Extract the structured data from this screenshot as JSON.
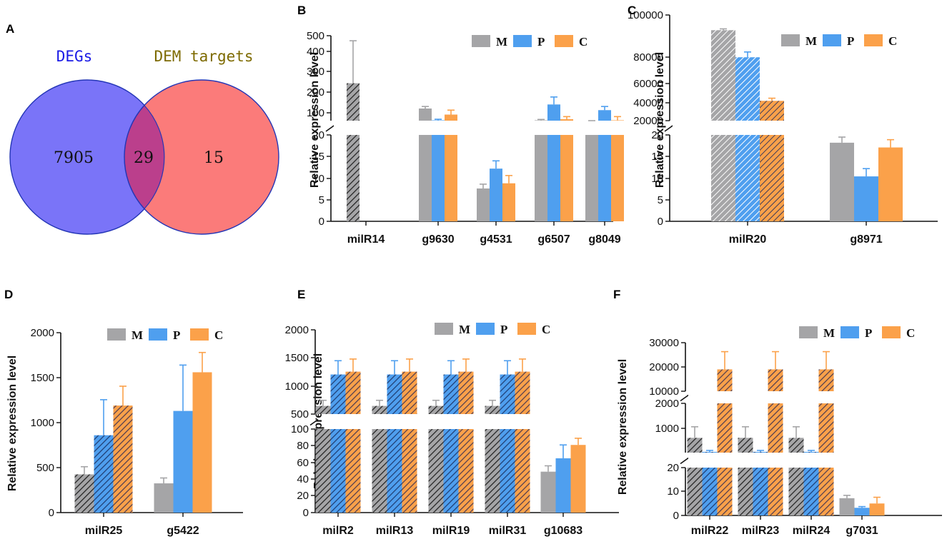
{
  "colors": {
    "M": "#a5a5a7",
    "P": "#4f9fef",
    "C": "#fba14a",
    "bar_stroke": "#4a4a4a",
    "venn_left": "#7a74f8",
    "venn_right": "#fb7b7a",
    "venn_overlap": "#bb3f8c",
    "venn_border": "#2436b6",
    "venn_left_label": "#1b1be6",
    "venn_right_label": "#7d6a00"
  },
  "ylabel": "Relative expression level",
  "legend": [
    "M",
    "P",
    "C"
  ],
  "panels": {
    "A": {
      "letter": "A",
      "left_label": "DEGs",
      "right_label": "DEM targets",
      "left_only": "7905",
      "overlap": "29",
      "right_only": "15"
    },
    "B": {
      "letter": "B"
    },
    "C": {
      "letter": "C"
    },
    "D": {
      "letter": "D"
    },
    "E": {
      "letter": "E"
    },
    "F": {
      "letter": "F"
    }
  },
  "chart_data": [
    {
      "panel": "B",
      "type": "bar",
      "title": "",
      "ylabel": "Relative expression level",
      "broken_axis": {
        "lower": [
          0,
          20
        ],
        "upper": [
          80,
          500
        ]
      },
      "lower_ticks": [
        "0",
        "5",
        "10",
        "15",
        "20"
      ],
      "upper_ticks": [
        "100",
        "200",
        "300",
        "400",
        "500"
      ],
      "series_names": [
        "M",
        "P",
        "C"
      ],
      "groups": [
        {
          "label": "milR14",
          "hatched": true,
          "values": [
            265,
            null,
            null
          ],
          "errors": [
            210,
            null,
            null
          ]
        },
        {
          "label": "g9630",
          "hatched": false,
          "values": [
            140,
            82,
            110
          ],
          "errors": [
            10,
            5,
            22
          ]
        },
        {
          "label": "g4531",
          "hatched": false,
          "values": [
            7.6,
            12.2,
            8.8
          ],
          "errors": [
            1.0,
            1.8,
            1.8
          ]
        },
        {
          "label": "g6507",
          "hatched": false,
          "values": [
            82,
            160,
            87
          ],
          "errors": [
            4,
            37,
            13
          ]
        },
        {
          "label": "g8049",
          "hatched": false,
          "values": [
            72,
            132,
            82
          ],
          "errors": [
            4,
            18,
            18
          ]
        }
      ]
    },
    {
      "panel": "C",
      "type": "bar",
      "title": "",
      "ylabel": "Relative expression level",
      "broken_axis": {
        "lower": [
          0,
          20
        ],
        "upper": [
          20000,
          100000
        ]
      },
      "lower_ticks": [
        "0",
        "5",
        "10",
        "15",
        "20"
      ],
      "upper_ticks": [
        "20000",
        "40000",
        "60000",
        "80000",
        "100000"
      ],
      "series_names": [
        "M",
        "P",
        "C"
      ],
      "groups": [
        {
          "label": "milR20",
          "hatched": true,
          "values": [
            88500,
            68000,
            35000
          ],
          "errors": [
            1000,
            4000,
            2000
          ]
        },
        {
          "label": "g8971",
          "hatched": false,
          "values": [
            18.2,
            10.4,
            17.1
          ],
          "errors": [
            1.3,
            1.8,
            1.8
          ]
        }
      ]
    },
    {
      "panel": "D",
      "type": "bar",
      "title": "",
      "ylabel": "Relative expression level",
      "ylim": [
        0,
        2000
      ],
      "ticks": [
        "0",
        "500",
        "1000",
        "1500",
        "2000"
      ],
      "series_names": [
        "M",
        "P",
        "C"
      ],
      "groups": [
        {
          "label": "milR25",
          "hatched": true,
          "values": [
            425,
            860,
            1190
          ],
          "errors": [
            85,
            395,
            215
          ]
        },
        {
          "label": "g5422",
          "hatched": false,
          "values": [
            325,
            1130,
            1560
          ],
          "errors": [
            60,
            510,
            220
          ]
        }
      ]
    },
    {
      "panel": "E",
      "type": "bar",
      "title": "",
      "ylabel": "Relative expression level",
      "broken_axis": {
        "lower": [
          0,
          100
        ],
        "upper": [
          500,
          2000
        ]
      },
      "lower_ticks": [
        "0",
        "20",
        "40",
        "60",
        "80",
        "100"
      ],
      "upper_ticks": [
        "500",
        "1000",
        "1500",
        "2000"
      ],
      "series_names": [
        "M",
        "P",
        "C"
      ],
      "groups": [
        {
          "label": "milR2",
          "hatched": true,
          "values": [
            645,
            1205,
            1255
          ],
          "errors": [
            100,
            245,
            225
          ]
        },
        {
          "label": "milR13",
          "hatched": true,
          "values": [
            645,
            1205,
            1255
          ],
          "errors": [
            100,
            245,
            225
          ]
        },
        {
          "label": "milR19",
          "hatched": true,
          "values": [
            645,
            1205,
            1255
          ],
          "errors": [
            100,
            245,
            225
          ]
        },
        {
          "label": "milR31",
          "hatched": true,
          "values": [
            645,
            1205,
            1255
          ],
          "errors": [
            100,
            245,
            225
          ]
        },
        {
          "label": "g10683",
          "hatched": false,
          "values": [
            49,
            65,
            81
          ],
          "errors": [
            7,
            16,
            8
          ]
        }
      ]
    },
    {
      "panel": "F",
      "type": "bar",
      "title": "",
      "ylabel": "Relative expression level",
      "broken_axis": {
        "lower": [
          0,
          20
        ],
        "upper": [
          0,
          30000
        ],
        "split": [
          2000,
          10000
        ]
      },
      "lower_ticks": [
        "0",
        "10",
        "20"
      ],
      "upper_ticks": [
        "1000",
        "2000",
        "10000",
        "20000",
        "30000"
      ],
      "series_names": [
        "M",
        "P",
        "C"
      ],
      "groups": [
        {
          "label": "milR22",
          "hatched": true,
          "values": [
            600,
            30,
            19000
          ],
          "errors": [
            450,
            60,
            7300
          ]
        },
        {
          "label": "milR23",
          "hatched": true,
          "values": [
            600,
            30,
            19000
          ],
          "errors": [
            450,
            60,
            7300
          ]
        },
        {
          "label": "milR24",
          "hatched": true,
          "values": [
            600,
            30,
            19000
          ],
          "errors": [
            450,
            60,
            7300
          ]
        },
        {
          "label": "g7031",
          "hatched": false,
          "values": [
            7.2,
            3.2,
            5.0
          ],
          "errors": [
            1.2,
            0.5,
            2.6
          ]
        }
      ]
    }
  ]
}
